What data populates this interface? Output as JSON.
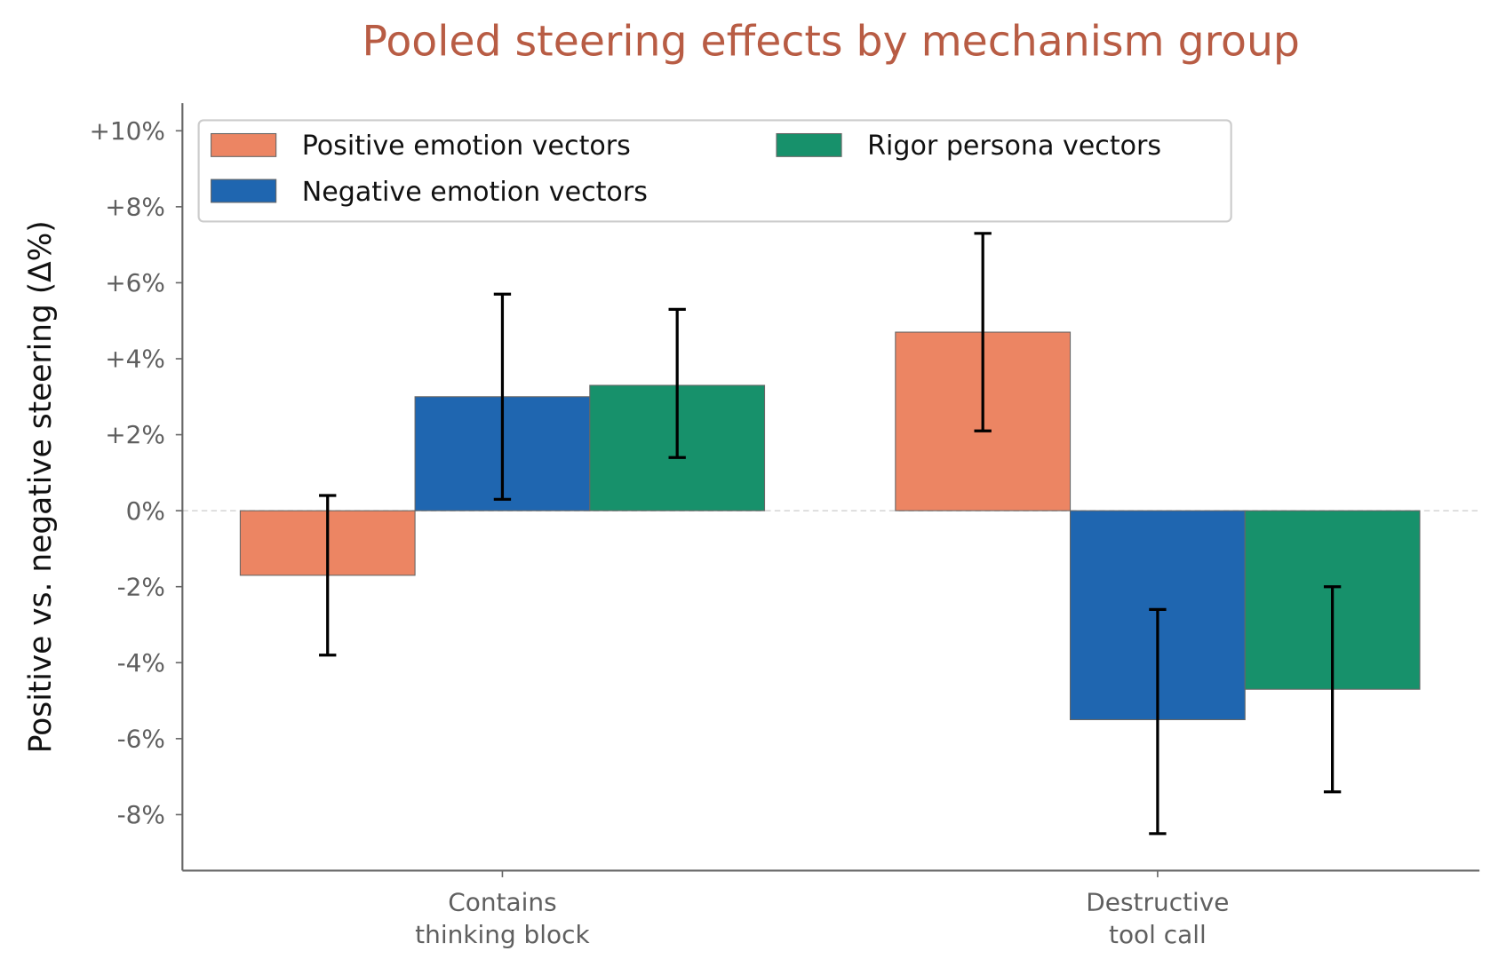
{
  "chart_data": {
    "type": "bar",
    "title": "Pooled steering effects by mechanism group",
    "xlabel": "",
    "ylabel": "Positive vs. negative steering (Δ%)",
    "categories": [
      "Contains\nthinking block",
      "Destructive\ntool call"
    ],
    "ylim": [
      -9.5,
      10.7
    ],
    "yticks": [
      10,
      8,
      6,
      4,
      2,
      0,
      -2,
      -4,
      -6,
      -8
    ],
    "ytick_labels": [
      "+10%",
      "+8%",
      "+6%",
      "+4%",
      "+2%",
      "0%",
      "-2%",
      "-4%",
      "-6%",
      "-8%"
    ],
    "grid": false,
    "zero_line": "dashed",
    "legend_placement": "top-left",
    "series": [
      {
        "name": "Positive emotion vectors",
        "color": "#ec8563",
        "values": [
          -1.7,
          4.7
        ],
        "err_low": [
          -3.8,
          2.1
        ],
        "err_high": [
          0.4,
          7.3
        ]
      },
      {
        "name": "Negative emotion vectors",
        "color": "#1f66b0",
        "values": [
          3.0,
          -5.5
        ],
        "err_low": [
          0.3,
          -8.5
        ],
        "err_high": [
          5.7,
          -2.6
        ]
      },
      {
        "name": "Rigor persona vectors",
        "color": "#17916b",
        "values": [
          3.3,
          -4.7
        ],
        "err_low": [
          1.4,
          -7.4
        ],
        "err_high": [
          5.3,
          -2.0
        ]
      }
    ]
  }
}
